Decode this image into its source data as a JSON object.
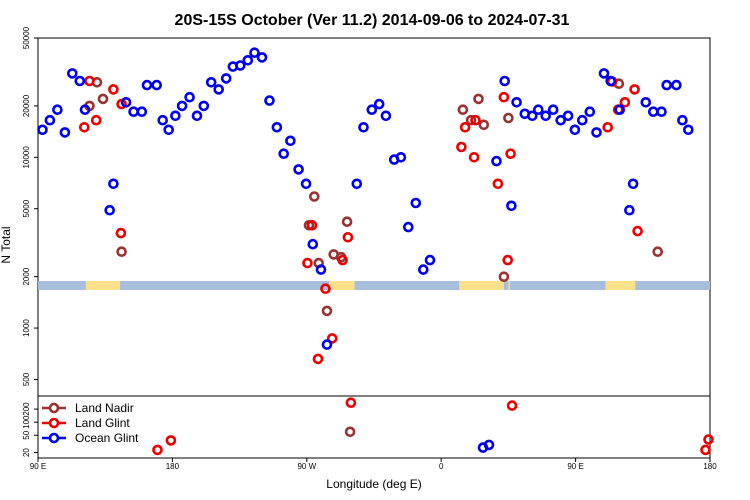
{
  "chart_data": {
    "type": "scatter",
    "title": "20S-15S October (Ver 11.2)   2014-09-06 to 2024-07-31",
    "xlabel": "Longitude (deg E)",
    "ylabel": "N Total",
    "x_ticks": [
      {
        "value": 90,
        "label": "90 E"
      },
      {
        "value": 180,
        "label": "180"
      },
      {
        "value": 270,
        "label": "90 W"
      },
      {
        "value": 360,
        "label": "0"
      },
      {
        "value": 450,
        "label": "90 E"
      },
      {
        "value": 540,
        "label": "180"
      }
    ],
    "xlim": [
      90,
      540
    ],
    "y_scale": "log",
    "upper_panel": {
      "ylim": [
        400,
        50000
      ],
      "y_ticks": [
        500,
        1000,
        2000,
        5000,
        10000,
        20000,
        50000
      ]
    },
    "lower_panel": {
      "ylim": [
        15,
        400
      ],
      "y_ticks": [
        20,
        50,
        100,
        200
      ]
    },
    "legend_position": "bottom-left",
    "colors": {
      "land_nadir": "#993333",
      "land_glint": "#ee0000",
      "ocean_glint": "#0000ee",
      "ocean_band": "#a8bedd",
      "land_band": "#fce08a"
    },
    "series": [
      {
        "name": "Land Nadir",
        "color": "#993333",
        "points": [
          [
            124.5,
            20000
          ],
          [
            129.5,
            27500
          ],
          [
            133.5,
            22000
          ],
          [
            146,
            2800
          ],
          [
            271.5,
            4000
          ],
          [
            275,
            5900
          ],
          [
            278,
            2400
          ],
          [
            283.5,
            1260
          ],
          [
            288,
            2700
          ],
          [
            293,
            2600
          ],
          [
            297,
            4200
          ],
          [
            299,
            60
          ],
          [
            374.5,
            19000
          ],
          [
            380,
            16500
          ],
          [
            385,
            22000
          ],
          [
            388.5,
            15500
          ],
          [
            402,
            2000
          ],
          [
            405,
            17000
          ],
          [
            479,
            27000
          ],
          [
            505,
            2800
          ]
        ]
      },
      {
        "name": "Land Glint",
        "color": "#ee0000",
        "points": [
          [
            121,
            15000
          ],
          [
            124.5,
            28000
          ],
          [
            129,
            16500
          ],
          [
            140.5,
            25000
          ],
          [
            145.5,
            3600
          ],
          [
            146,
            20500
          ],
          [
            170,
            23
          ],
          [
            179,
            38
          ],
          [
            270.5,
            2400
          ],
          [
            273.5,
            4000
          ],
          [
            277.5,
            660
          ],
          [
            282.5,
            1700
          ],
          [
            287,
            870
          ],
          [
            294,
            2500
          ],
          [
            297.5,
            3400
          ],
          [
            299.5,
            280
          ],
          [
            373.5,
            11500
          ],
          [
            376,
            15000
          ],
          [
            382,
            10000
          ],
          [
            383,
            16500
          ],
          [
            398,
            7000
          ],
          [
            402,
            22500
          ],
          [
            404.5,
            2500
          ],
          [
            406.5,
            10500
          ],
          [
            407.5,
            240
          ],
          [
            471.5,
            15000
          ],
          [
            474.5,
            27800
          ],
          [
            478.5,
            19000
          ],
          [
            483,
            21000
          ],
          [
            489.5,
            25000
          ],
          [
            491.5,
            3700
          ],
          [
            537,
            23
          ],
          [
            539,
            40
          ]
        ]
      },
      {
        "name": "Ocean Glint",
        "color": "#0000ee",
        "points": [
          [
            93,
            14500
          ],
          [
            98,
            16500
          ],
          [
            103,
            19000
          ],
          [
            108,
            14000
          ],
          [
            113,
            31000
          ],
          [
            118,
            28000
          ],
          [
            121.5,
            19000
          ],
          [
            138,
            4900
          ],
          [
            140.5,
            7000
          ],
          [
            149,
            21000
          ],
          [
            154,
            18500
          ],
          [
            159.5,
            18500
          ],
          [
            163,
            26500
          ],
          [
            169.5,
            26500
          ],
          [
            173.5,
            16500
          ],
          [
            177.5,
            14500
          ],
          [
            182,
            17500
          ],
          [
            186.5,
            20000
          ],
          [
            191.5,
            22500
          ],
          [
            196.5,
            17500
          ],
          [
            201,
            20000
          ],
          [
            206,
            27500
          ],
          [
            211,
            25000
          ],
          [
            216,
            29000
          ],
          [
            220.5,
            34000
          ],
          [
            225.5,
            34500
          ],
          [
            230.5,
            37000
          ],
          [
            235,
            41000
          ],
          [
            240,
            38500
          ],
          [
            245,
            21500
          ],
          [
            250,
            15000
          ],
          [
            254.5,
            10500
          ],
          [
            259,
            12500
          ],
          [
            264.5,
            8500
          ],
          [
            269.5,
            7000
          ],
          [
            274,
            3100
          ],
          [
            279.5,
            2200
          ],
          [
            283.5,
            800
          ],
          [
            303.5,
            7000
          ],
          [
            308,
            15000
          ],
          [
            313.5,
            19000
          ],
          [
            318.5,
            20500
          ],
          [
            323,
            17500
          ],
          [
            328.5,
            9700
          ],
          [
            333,
            10000
          ],
          [
            338,
            3900
          ],
          [
            343,
            5400
          ],
          [
            348,
            2200
          ],
          [
            352.5,
            2500
          ],
          [
            388,
            26
          ],
          [
            392,
            30
          ],
          [
            397,
            9500
          ],
          [
            402.5,
            28000
          ],
          [
            407,
            5200
          ],
          [
            410.5,
            21000
          ],
          [
            416,
            18000
          ],
          [
            421,
            17500
          ],
          [
            425,
            19000
          ],
          [
            430,
            17500
          ],
          [
            435,
            19000
          ],
          [
            440,
            16500
          ],
          [
            445,
            17500
          ],
          [
            449.5,
            14500
          ],
          [
            454.5,
            16500
          ],
          [
            459.5,
            18500
          ],
          [
            464,
            14000
          ],
          [
            469,
            31000
          ],
          [
            473.5,
            28000
          ],
          [
            479.5,
            19000
          ],
          [
            486,
            4900
          ],
          [
            488.5,
            7000
          ],
          [
            497,
            21000
          ],
          [
            502,
            18500
          ],
          [
            507.5,
            18500
          ],
          [
            511,
            26500
          ],
          [
            517.5,
            26500
          ],
          [
            521.5,
            16500
          ],
          [
            525.5,
            14500
          ]
        ]
      }
    ]
  },
  "surface_band": {
    "label": "",
    "land_ranges": [
      [
        122,
        145
      ],
      [
        285,
        302
      ],
      [
        372,
        402
      ],
      [
        405,
        406
      ],
      [
        470,
        490
      ]
    ]
  }
}
